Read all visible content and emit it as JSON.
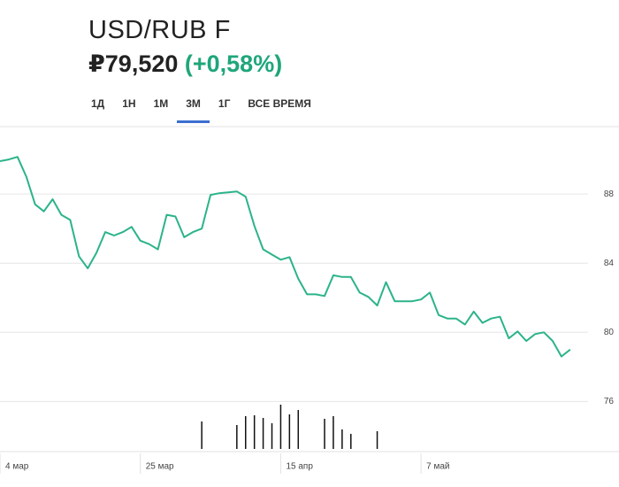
{
  "header": {
    "title": "USD/RUB F",
    "price": "₽79,520",
    "change": "(+0,58%)"
  },
  "tabs": {
    "items": [
      "1Д",
      "1Н",
      "1М",
      "3М",
      "1Г",
      "ВСЕ ВРЕМЯ"
    ],
    "active": 3
  },
  "chart_data": {
    "type": "line",
    "color": "#2bb38a",
    "categories": [
      "4 мар",
      null,
      null,
      null,
      null,
      null,
      null,
      null,
      null,
      null,
      null,
      null,
      null,
      null,
      null,
      null,
      "25 мар",
      null,
      null,
      null,
      null,
      null,
      null,
      null,
      null,
      null,
      null,
      null,
      null,
      null,
      null,
      null,
      "15 апр",
      null,
      null,
      null,
      null,
      null,
      null,
      null,
      null,
      null,
      null,
      null,
      null,
      null,
      null,
      null,
      "7 май",
      null,
      null,
      null,
      null,
      null,
      null,
      null,
      null,
      null,
      null,
      null,
      null,
      null,
      null,
      null,
      null,
      null
    ],
    "values": [
      89.9,
      90.0,
      90.15,
      89.0,
      87.4,
      87.0,
      87.7,
      86.8,
      86.5,
      84.4,
      83.7,
      84.6,
      85.8,
      85.6,
      85.8,
      86.1,
      85.3,
      85.1,
      84.8,
      86.8,
      86.7,
      85.5,
      85.8,
      86.0,
      87.95,
      88.05,
      88.1,
      88.15,
      87.85,
      86.15,
      84.8,
      84.5,
      84.2,
      84.35,
      83.1,
      82.2,
      82.2,
      82.1,
      83.3,
      83.2,
      83.2,
      82.3,
      82.05,
      81.55,
      82.9,
      81.8,
      81.8,
      81.8,
      81.9,
      82.3,
      81.0,
      80.8,
      80.8,
      80.45,
      81.2,
      80.55,
      80.8,
      80.9,
      79.65,
      80.05,
      79.5,
      79.9,
      80.0,
      79.5,
      78.6,
      79.0
    ],
    "volume": [
      null,
      null,
      null,
      null,
      null,
      null,
      null,
      null,
      null,
      null,
      null,
      null,
      null,
      null,
      null,
      null,
      null,
      null,
      null,
      null,
      null,
      null,
      null,
      31,
      null,
      null,
      null,
      27,
      37,
      38,
      35,
      29,
      50,
      39,
      44,
      null,
      null,
      34,
      37,
      22,
      17,
      null,
      null,
      20,
      null,
      null,
      null,
      null,
      null,
      null,
      null,
      null,
      null,
      null,
      null,
      null,
      null,
      null,
      null,
      null,
      null,
      null,
      null,
      null,
      null,
      null
    ],
    "volume_lim": [
      0,
      50
    ],
    "ylim": [
      73.1,
      91.9
    ],
    "yticks": [
      76,
      80,
      84,
      88
    ],
    "grid": true
  }
}
